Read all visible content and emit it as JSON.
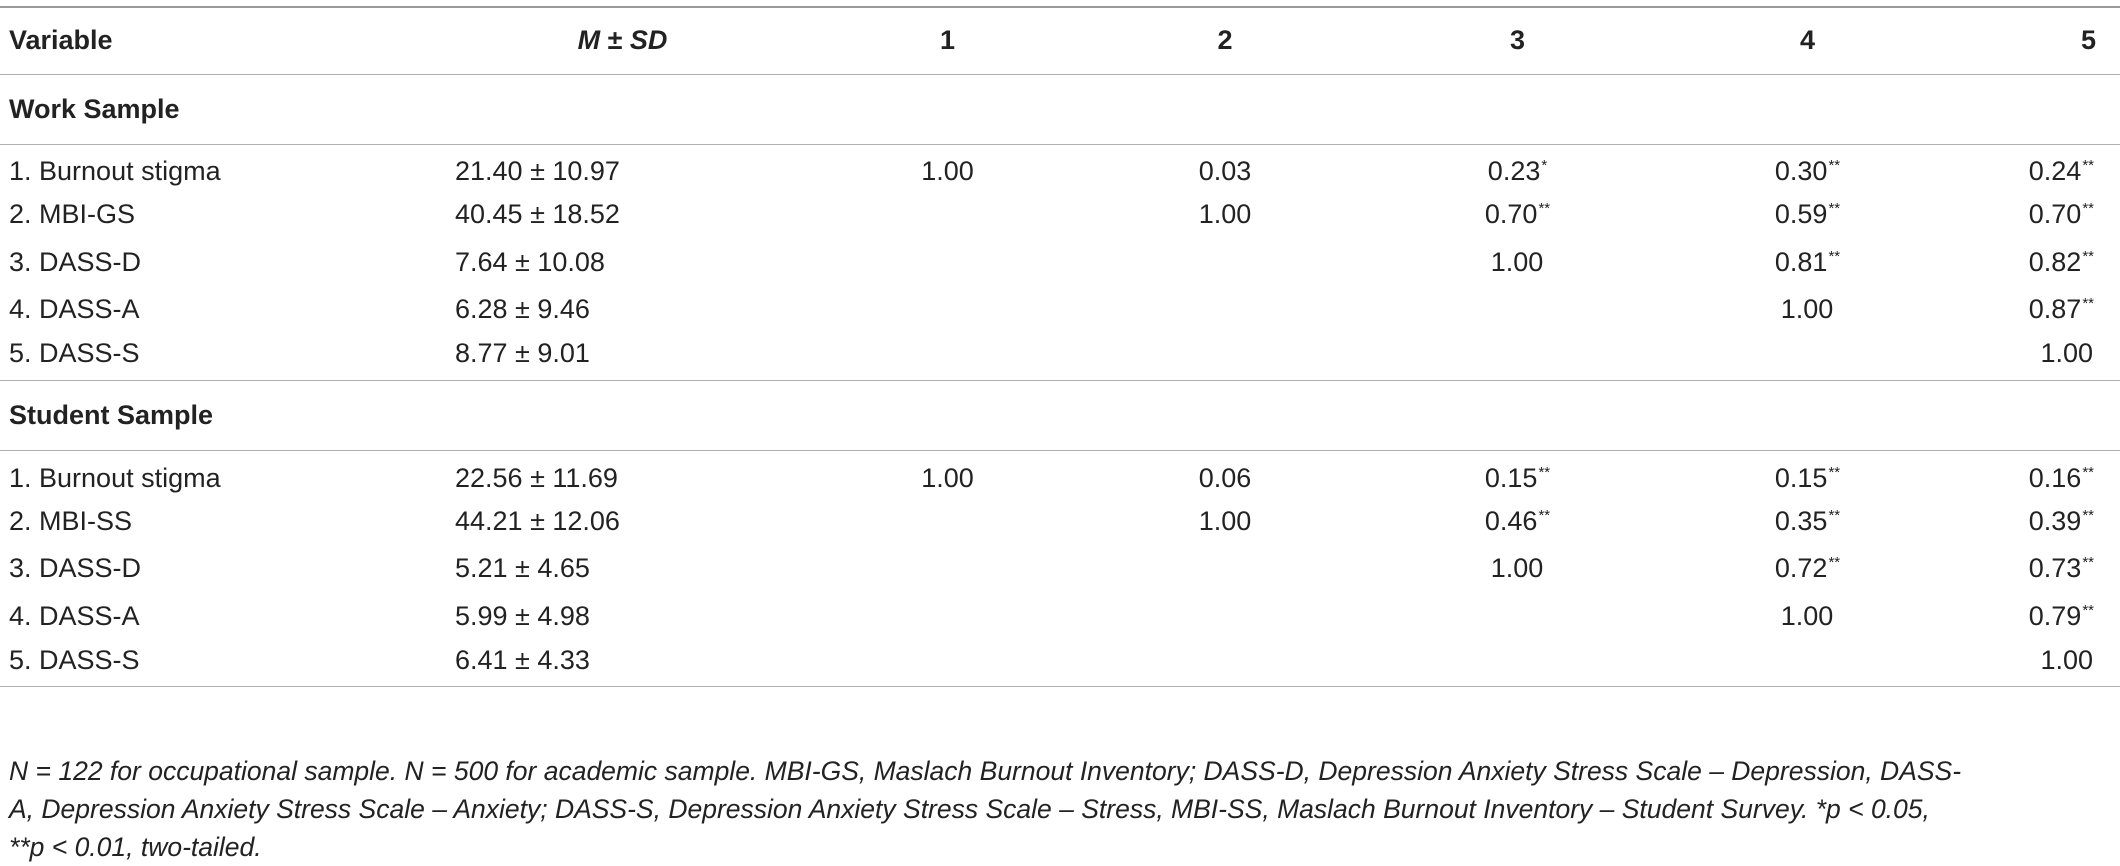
{
  "header": {
    "variable": "Variable",
    "m": "M",
    "pm": " ± ",
    "sd": "SD",
    "cols": [
      "1",
      "2",
      "3",
      "4",
      "5"
    ]
  },
  "sections": [
    {
      "title": "Work Sample",
      "rows": [
        {
          "variable": "1. Burnout stigma",
          "msd": "21.40 ± 10.97",
          "c1": "1.00",
          "c2": "0.03",
          "c3": "0.23",
          "c3sup": "*",
          "c4": "0.30",
          "c4sup": "**",
          "c5": "0.24",
          "c5sup": "**"
        },
        {
          "variable": "2. MBI-GS",
          "msd": "40.45 ± 18.52",
          "c1": "",
          "c2": "1.00",
          "c3": "0.70",
          "c3sup": "**",
          "c4": "0.59",
          "c4sup": "**",
          "c5": "0.70",
          "c5sup": "**"
        },
        {
          "variable": "3. DASS-D",
          "msd": "7.64 ± 10.08",
          "c1": "",
          "c2": "",
          "c3": "1.00",
          "c3sup": "",
          "c4": "0.81",
          "c4sup": "**",
          "c5": "0.82",
          "c5sup": "**"
        },
        {
          "variable": "4. DASS-A",
          "msd": "6.28 ± 9.46",
          "c1": "",
          "c2": "",
          "c3": "",
          "c3sup": "",
          "c4": "1.00",
          "c4sup": "",
          "c5": "0.87",
          "c5sup": "**"
        },
        {
          "variable": "5. DASS-S",
          "msd": "8.77 ± 9.01",
          "c1": "",
          "c2": "",
          "c3": "",
          "c3sup": "",
          "c4": "",
          "c4sup": "",
          "c5": "1.00",
          "c5sup": ""
        }
      ]
    },
    {
      "title": "Student Sample",
      "rows": [
        {
          "variable": "1. Burnout stigma",
          "msd": "22.56 ± 11.69",
          "c1": "1.00",
          "c2": "0.06",
          "c3": "0.15",
          "c3sup": "**",
          "c4": "0.15",
          "c4sup": "**",
          "c5": "0.16",
          "c5sup": "**"
        },
        {
          "variable": "2. MBI-SS",
          "msd": "44.21 ± 12.06",
          "c1": "",
          "c2": "1.00",
          "c3": "0.46",
          "c3sup": "**",
          "c4": "0.35",
          "c4sup": "**",
          "c5": "0.39",
          "c5sup": "**"
        },
        {
          "variable": "3. DASS-D",
          "msd": "5.21 ± 4.65",
          "c1": "",
          "c2": "",
          "c3": "1.00",
          "c3sup": "",
          "c4": "0.72",
          "c4sup": "**",
          "c5": "0.73",
          "c5sup": "**"
        },
        {
          "variable": "4. DASS-A",
          "msd": "5.99 ± 4.98",
          "c1": "",
          "c2": "",
          "c3": "",
          "c3sup": "",
          "c4": "1.00",
          "c4sup": "",
          "c5": "0.79",
          "c5sup": "**"
        },
        {
          "variable": "5. DASS-S",
          "msd": "6.41 ± 4.33",
          "c1": "",
          "c2": "",
          "c3": "",
          "c3sup": "",
          "c4": "",
          "c4sup": "",
          "c5": "1.00",
          "c5sup": ""
        }
      ]
    }
  ],
  "footnote": {
    "line1": "N = 122 for occupational sample. N = 500 for academic sample. MBI-GS, Maslach Burnout Inventory; DASS-D, Depression Anxiety Stress Scale – Depression, DASS-",
    "line2": "A, Depression Anxiety Stress Scale – Anxiety; DASS-S, Depression Anxiety Stress Scale – Stress, MBI-SS, Maslach Burnout Inventory – Student Survey. *p < 0.05,",
    "line3": "**p < 0.01, two-tailed."
  }
}
